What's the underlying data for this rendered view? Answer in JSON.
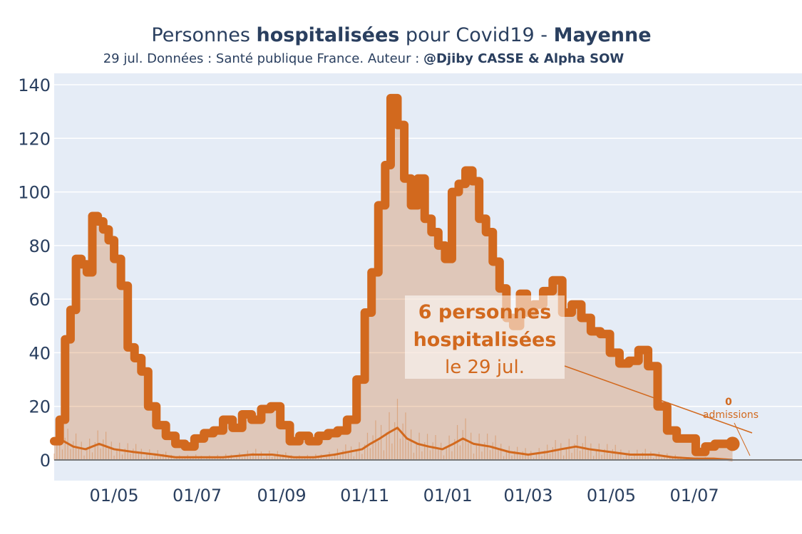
{
  "title": {
    "part1": "Personnes ",
    "part2_bold": "hospitalisées",
    "part3": " pour Covid19 - ",
    "part4_bold": "Mayenne"
  },
  "subtitle": {
    "text": "29 jul. Données : Santé publique France. Auteur : ",
    "author_bold": "@Djiby CASSE & Alpha SOW"
  },
  "annotation": {
    "line1": "6 personnes",
    "line2": "hospitalisées",
    "line3": "le 29 jul."
  },
  "admissions_annotation": {
    "value": "0",
    "label": "admissions"
  },
  "colors": {
    "accent": "#d2691e",
    "plot_bg": "#e5ecf6",
    "grid": "#ffffff",
    "text": "#2a3f5f"
  },
  "chart_data": {
    "type": "area",
    "ylim": [
      0,
      140
    ],
    "yticks": [
      0,
      20,
      40,
      60,
      80,
      100,
      120,
      140
    ],
    "xlim": [
      "2020-03-18",
      "2021-09-18"
    ],
    "xticks": [
      {
        "date": "2020-05-01",
        "label": "01/05"
      },
      {
        "date": "2020-07-01",
        "label": "01/07"
      },
      {
        "date": "2020-09-01",
        "label": "01/09"
      },
      {
        "date": "2020-11-01",
        "label": "01/11"
      },
      {
        "date": "2021-01-01",
        "label": "01/01"
      },
      {
        "date": "2021-03-01",
        "label": "01/03"
      },
      {
        "date": "2021-05-01",
        "label": "01/05"
      },
      {
        "date": "2021-07-01",
        "label": "01/07"
      }
    ],
    "series": [
      {
        "role": "hospitalized",
        "x": [
          "2020-03-18",
          "2020-03-22",
          "2020-03-26",
          "2020-03-30",
          "2020-04-03",
          "2020-04-07",
          "2020-04-11",
          "2020-04-15",
          "2020-04-19",
          "2020-04-23",
          "2020-04-27",
          "2020-05-01",
          "2020-05-06",
          "2020-05-11",
          "2020-05-16",
          "2020-05-21",
          "2020-05-26",
          "2020-06-01",
          "2020-06-08",
          "2020-06-15",
          "2020-06-22",
          "2020-06-29",
          "2020-07-06",
          "2020-07-13",
          "2020-07-20",
          "2020-07-27",
          "2020-08-03",
          "2020-08-10",
          "2020-08-17",
          "2020-08-24",
          "2020-08-31",
          "2020-09-07",
          "2020-09-14",
          "2020-09-21",
          "2020-09-28",
          "2020-10-05",
          "2020-10-12",
          "2020-10-19",
          "2020-10-26",
          "2020-11-01",
          "2020-11-06",
          "2020-11-11",
          "2020-11-16",
          "2020-11-20",
          "2020-11-25",
          "2020-11-30",
          "2020-12-05",
          "2020-12-10",
          "2020-12-15",
          "2020-12-20",
          "2020-12-25",
          "2020-12-30",
          "2021-01-04",
          "2021-01-09",
          "2021-01-14",
          "2021-01-19",
          "2021-01-24",
          "2021-01-29",
          "2021-02-03",
          "2021-02-08",
          "2021-02-13",
          "2021-02-18",
          "2021-02-23",
          "2021-02-28",
          "2021-03-05",
          "2021-03-12",
          "2021-03-19",
          "2021-03-26",
          "2021-04-02",
          "2021-04-09",
          "2021-04-16",
          "2021-04-23",
          "2021-04-30",
          "2021-05-07",
          "2021-05-14",
          "2021-05-21",
          "2021-05-28",
          "2021-06-04",
          "2021-06-11",
          "2021-06-18",
          "2021-06-25",
          "2021-07-02",
          "2021-07-09",
          "2021-07-16",
          "2021-07-23",
          "2021-07-29"
        ],
        "values": [
          7,
          15,
          45,
          56,
          75,
          73,
          70,
          91,
          89,
          86,
          82,
          75,
          65,
          42,
          38,
          33,
          20,
          13,
          9,
          6,
          5,
          8,
          10,
          11,
          15,
          12,
          17,
          15,
          19,
          20,
          13,
          7,
          9,
          7,
          9,
          10,
          11,
          15,
          30,
          55,
          70,
          95,
          110,
          135,
          125,
          105,
          95,
          105,
          90,
          85,
          80,
          75,
          100,
          103,
          108,
          104,
          90,
          85,
          74,
          64,
          53,
          50,
          62,
          55,
          58,
          63,
          67,
          55,
          58,
          53,
          48,
          47,
          40,
          36,
          37,
          41,
          35,
          20,
          11,
          8,
          8,
          3,
          5,
          6,
          6,
          6
        ]
      },
      {
        "role": "admissions",
        "x": [
          "2020-03-18",
          "2020-03-25",
          "2020-04-01",
          "2020-04-10",
          "2020-04-20",
          "2020-05-01",
          "2020-05-15",
          "2020-06-01",
          "2020-06-15",
          "2020-07-01",
          "2020-07-20",
          "2020-08-10",
          "2020-08-25",
          "2020-09-10",
          "2020-09-25",
          "2020-10-10",
          "2020-10-20",
          "2020-10-30",
          "2020-11-05",
          "2020-11-12",
          "2020-11-18",
          "2020-11-25",
          "2020-12-02",
          "2020-12-10",
          "2020-12-18",
          "2020-12-28",
          "2021-01-05",
          "2021-01-12",
          "2021-01-20",
          "2021-02-01",
          "2021-02-15",
          "2021-03-01",
          "2021-03-15",
          "2021-03-25",
          "2021-04-05",
          "2021-04-15",
          "2021-04-30",
          "2021-05-15",
          "2021-06-01",
          "2021-06-15",
          "2021-07-01",
          "2021-07-15",
          "2021-07-29"
        ],
        "values": [
          6,
          7,
          5,
          4,
          6,
          4,
          3,
          2,
          1,
          1,
          1,
          2,
          2,
          1,
          1,
          2,
          3,
          4,
          6,
          8,
          10,
          12,
          8,
          6,
          5,
          4,
          6,
          8,
          6,
          5,
          3,
          2,
          3,
          4,
          5,
          4,
          3,
          2,
          2,
          1,
          0.5,
          0.5,
          0
        ]
      }
    ]
  }
}
